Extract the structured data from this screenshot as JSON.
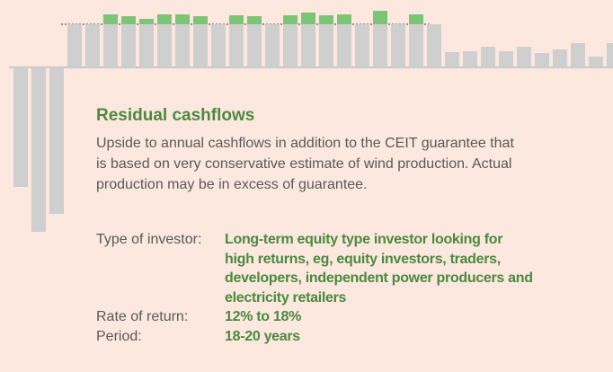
{
  "chart_data": {
    "type": "bar",
    "stacked": true,
    "categories": [
      null,
      null,
      null,
      null,
      null,
      null,
      null,
      null,
      null,
      null,
      null,
      null,
      null,
      null,
      null,
      null,
      null,
      null,
      null,
      null,
      null,
      null,
      null,
      null,
      null,
      null,
      null,
      null,
      null,
      null,
      null,
      null,
      null,
      null
    ],
    "series": [
      {
        "color": "#cfcfcf",
        "values": [
          -133,
          -183,
          -163,
          48,
          48,
          48,
          48,
          48,
          48,
          48,
          48,
          48,
          48,
          48,
          48,
          48,
          48,
          48,
          48,
          48,
          48,
          48,
          48,
          48,
          17,
          18,
          23,
          18,
          23,
          16,
          20,
          27,
          12,
          27
        ]
      },
      {
        "color": "#7cc576",
        "values": [
          null,
          null,
          null,
          null,
          null,
          11,
          9,
          6,
          11,
          11,
          9,
          null,
          10,
          9,
          null,
          10,
          13,
          10,
          11,
          null,
          15,
          null,
          11,
          null,
          null,
          null,
          null,
          null,
          null,
          null,
          null,
          null,
          null,
          null
        ]
      }
    ],
    "ylim": [
      -183,
      75
    ]
  },
  "section": {
    "title": "Residual cashflows",
    "description_lines": [
      "Upside to annual cashflows in addition to the CEIT guarantee that",
      "is based on very conservative estimate of wind production. Actual",
      "production may be in excess of guarantee."
    ],
    "details": [
      {
        "label": "Type of investor:",
        "value_lines": [
          "Long-term equity type investor looking for",
          "high returns, eg, equity investors, traders,",
          "developers, independent power producers and",
          "electricity retailers"
        ]
      },
      {
        "label": "Rate of return:",
        "value_lines": [
          "12% to 18%"
        ]
      },
      {
        "label": "Period:",
        "value_lines": [
          "18-20 years"
        ]
      }
    ]
  }
}
